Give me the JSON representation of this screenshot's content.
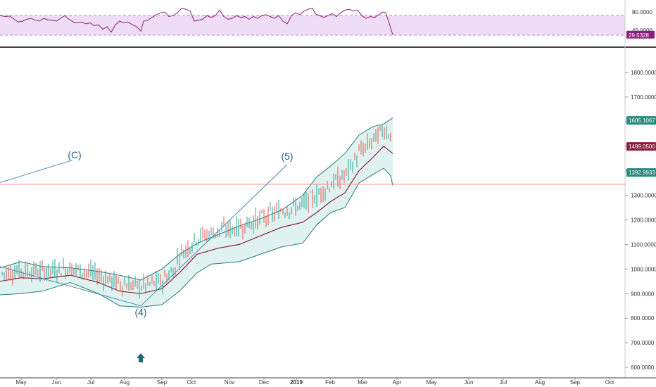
{
  "chart_data": [
    {
      "type": "line",
      "panel": "rsi",
      "ylim": [
        15,
        95
      ],
      "levels": [
        70,
        30
      ],
      "y_ticks": [
        "80.0000",
        "40.0000"
      ],
      "last_value_label": "29.5328",
      "last_value": 29.53,
      "points": [
        [
          0,
          72
        ],
        [
          8,
          70
        ],
        [
          14,
          71
        ],
        [
          20,
          64
        ],
        [
          26,
          58
        ],
        [
          32,
          60
        ],
        [
          38,
          64
        ],
        [
          44,
          66
        ],
        [
          50,
          62
        ],
        [
          56,
          60
        ],
        [
          62,
          66
        ],
        [
          68,
          63
        ],
        [
          74,
          62
        ],
        [
          80,
          60
        ],
        [
          86,
          66
        ],
        [
          92,
          72
        ],
        [
          98,
          64
        ],
        [
          104,
          58
        ],
        [
          110,
          56
        ],
        [
          116,
          58
        ],
        [
          122,
          54
        ],
        [
          128,
          56
        ],
        [
          134,
          50
        ],
        [
          140,
          52
        ],
        [
          146,
          42
        ],
        [
          152,
          48
        ],
        [
          158,
          36
        ],
        [
          164,
          52
        ],
        [
          170,
          60
        ],
        [
          176,
          56
        ],
        [
          182,
          58
        ],
        [
          188,
          52
        ],
        [
          194,
          48
        ],
        [
          200,
          38
        ],
        [
          204,
          60
        ],
        [
          210,
          62
        ],
        [
          216,
          68
        ],
        [
          222,
          74
        ],
        [
          228,
          78
        ],
        [
          234,
          80
        ],
        [
          240,
          70
        ],
        [
          246,
          72
        ],
        [
          252,
          78
        ],
        [
          258,
          88
        ],
        [
          264,
          86
        ],
        [
          270,
          82
        ],
        [
          276,
          60
        ],
        [
          282,
          62
        ],
        [
          288,
          64
        ],
        [
          294,
          72
        ],
        [
          300,
          68
        ],
        [
          306,
          72
        ],
        [
          312,
          84
        ],
        [
          318,
          70
        ],
        [
          324,
          64
        ],
        [
          330,
          66
        ],
        [
          336,
          72
        ],
        [
          342,
          68
        ],
        [
          348,
          70
        ],
        [
          354,
          64
        ],
        [
          360,
          70
        ],
        [
          366,
          66
        ],
        [
          372,
          72
        ],
        [
          378,
          74
        ],
        [
          384,
          70
        ],
        [
          390,
          66
        ],
        [
          396,
          72
        ],
        [
          402,
          60
        ],
        [
          408,
          54
        ],
        [
          414,
          72
        ],
        [
          420,
          78
        ],
        [
          426,
          74
        ],
        [
          432,
          82
        ],
        [
          438,
          86
        ],
        [
          444,
          88
        ],
        [
          448,
          76
        ],
        [
          454,
          72
        ],
        [
          460,
          68
        ],
        [
          466,
          72
        ],
        [
          472,
          76
        ],
        [
          478,
          70
        ],
        [
          484,
          78
        ],
        [
          490,
          84
        ],
        [
          496,
          86
        ],
        [
          502,
          82
        ],
        [
          508,
          84
        ],
        [
          514,
          72
        ],
        [
          520,
          66
        ],
        [
          526,
          70
        ],
        [
          532,
          68
        ],
        [
          538,
          74
        ],
        [
          544,
          80
        ],
        [
          548,
          78
        ],
        [
          552,
          60
        ],
        [
          556,
          40
        ],
        [
          558,
          30
        ]
      ]
    },
    {
      "type": "candlestick",
      "panel": "price",
      "ylim": [
        580,
        1930
      ],
      "y_ticks": [
        1800,
        1700,
        1600,
        1500,
        1400,
        1300,
        1200,
        1100,
        1000,
        900,
        800,
        700,
        600
      ],
      "y_tick_labels": [
        "1800.0000",
        "1700.0000",
        "1600.0000",
        "1500.0000",
        "1400.0000",
        "1300.0000",
        "1200.0000",
        "1100.0000",
        "1000.0000",
        "900.0000",
        "800.0000",
        "700.0000",
        "600.0000"
      ],
      "x_ticks": [
        "May",
        "Jun",
        "Jul",
        "Aug",
        "Sep",
        "Oct",
        "Nov",
        "Dec",
        "2019",
        "Feb",
        "Mar",
        "Apr",
        "May",
        "Jun",
        "Jul",
        "Aug",
        "Sep",
        "Oct"
      ],
      "price_badges": [
        {
          "label": "1605.1067",
          "value": 1605,
          "color": "#26897a"
        },
        {
          "label": "1499.0500",
          "value": 1499,
          "color": "#8a1f3d"
        },
        {
          "label": "1392.9933",
          "value": 1393,
          "color": "#26897a"
        }
      ],
      "horizontal_line": 1345,
      "wave_labels": [
        {
          "text": "(C)",
          "x": 106,
          "y": 1450
        },
        {
          "text": "(5)",
          "x": 408,
          "y": 1445
        },
        {
          "text": "(4)",
          "x": 200,
          "y": 810
        }
      ],
      "trend_lines": [
        [
          [
            0,
            1352
          ],
          [
            103,
            1443
          ]
        ],
        [
          [
            0,
            1010
          ],
          [
            200,
            850
          ]
        ],
        [
          [
            200,
            850
          ],
          [
            408,
            1425
          ]
        ]
      ],
      "upper_band": [
        [
          0,
          1005
        ],
        [
          30,
          1030
        ],
        [
          60,
          1010
        ],
        [
          100,
          1005
        ],
        [
          140,
          990
        ],
        [
          170,
          975
        ],
        [
          200,
          955
        ],
        [
          230,
          1000
        ],
        [
          255,
          1060
        ],
        [
          280,
          1105
        ],
        [
          310,
          1140
        ],
        [
          340,
          1175
        ],
        [
          370,
          1205
        ],
        [
          400,
          1240
        ],
        [
          430,
          1300
        ],
        [
          450,
          1375
        ],
        [
          470,
          1420
        ],
        [
          490,
          1470
        ],
        [
          510,
          1545
        ],
        [
          530,
          1580
        ],
        [
          545,
          1590
        ],
        [
          558,
          1615
        ]
      ],
      "middle_band": [
        [
          0,
          950
        ],
        [
          30,
          965
        ],
        [
          60,
          960
        ],
        [
          100,
          975
        ],
        [
          140,
          945
        ],
        [
          170,
          910
        ],
        [
          200,
          900
        ],
        [
          230,
          920
        ],
        [
          255,
          985
        ],
        [
          280,
          1060
        ],
        [
          310,
          1085
        ],
        [
          340,
          1100
        ],
        [
          370,
          1135
        ],
        [
          400,
          1170
        ],
        [
          430,
          1190
        ],
        [
          450,
          1230
        ],
        [
          470,
          1275
        ],
        [
          490,
          1310
        ],
        [
          510,
          1400
        ],
        [
          530,
          1455
        ],
        [
          545,
          1500
        ],
        [
          558,
          1470
        ]
      ],
      "lower_band": [
        [
          0,
          895
        ],
        [
          30,
          900
        ],
        [
          60,
          910
        ],
        [
          100,
          945
        ],
        [
          140,
          900
        ],
        [
          170,
          850
        ],
        [
          200,
          845
        ],
        [
          230,
          855
        ],
        [
          255,
          910
        ],
        [
          280,
          985
        ],
        [
          300,
          1020
        ],
        [
          340,
          1030
        ],
        [
          370,
          1060
        ],
        [
          400,
          1090
        ],
        [
          430,
          1105
        ],
        [
          450,
          1180
        ],
        [
          470,
          1230
        ],
        [
          490,
          1250
        ],
        [
          510,
          1350
        ],
        [
          530,
          1385
        ],
        [
          545,
          1410
        ],
        [
          555,
          1380
        ],
        [
          558,
          1340
        ]
      ]
    }
  ]
}
